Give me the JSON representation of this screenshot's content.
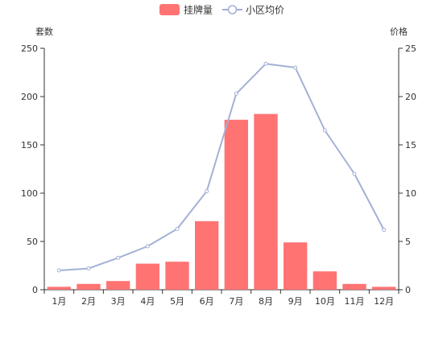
{
  "chart_data": {
    "type": "bar",
    "categories": [
      "1月",
      "2月",
      "3月",
      "4月",
      "5月",
      "6月",
      "7月",
      "8月",
      "9月",
      "10月",
      "11月",
      "12月"
    ],
    "series": [
      {
        "name": "挂牌量",
        "type": "bar",
        "axis": "left",
        "color": "#ff7373",
        "values": [
          3,
          6,
          9,
          27,
          29,
          71,
          176,
          182,
          49,
          19,
          6,
          3
        ]
      },
      {
        "name": "小区均价",
        "type": "line",
        "axis": "right",
        "color": "#a3b1d6",
        "values": [
          2.0,
          2.2,
          3.3,
          4.5,
          6.3,
          10.2,
          20.3,
          23.4,
          23.0,
          16.5,
          12.0,
          6.2
        ]
      }
    ],
    "y_left": {
      "label": "套数",
      "min": 0,
      "max": 250,
      "ticks": [
        "0",
        "50",
        "100",
        "150",
        "200",
        "250"
      ]
    },
    "y_right": {
      "label": "价格",
      "min": 0,
      "max": 25,
      "ticks": [
        "0",
        "5",
        "10",
        "15",
        "20",
        "25"
      ]
    },
    "legend": {
      "position": "top-center"
    },
    "grid": false
  }
}
